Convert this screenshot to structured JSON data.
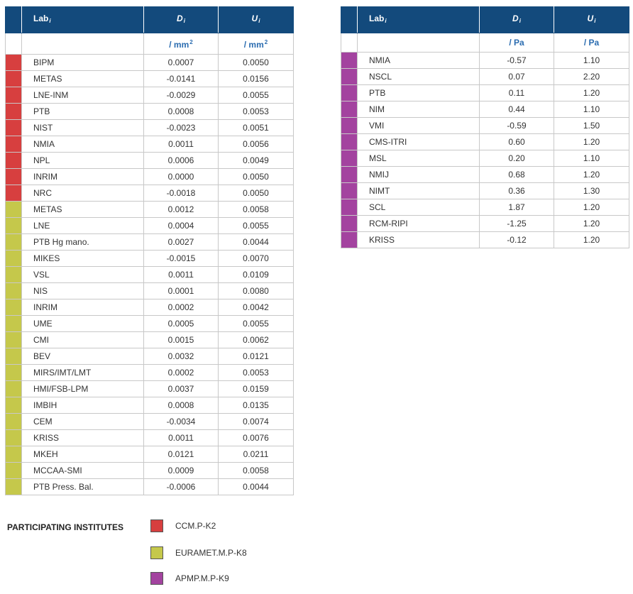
{
  "colors": {
    "header_bg": "#134a7c",
    "unit_text": "#2a6cb0",
    "red": "#d73f3f",
    "olive": "#c5c84b",
    "purple": "#a3439f"
  },
  "header": {
    "lab_label": "Lab",
    "lab_subscript": "i",
    "d_label": "D",
    "d_subscript": "i",
    "u_label": "U",
    "u_subscript": "i"
  },
  "left_table": {
    "unit_label": "/ mm",
    "unit_exponent": "2",
    "rows": [
      {
        "lab": "BIPM",
        "d": "0.0007",
        "u": "0.0050",
        "group": "red"
      },
      {
        "lab": "METAS",
        "d": "-0.0141",
        "u": "0.0156",
        "group": "red"
      },
      {
        "lab": "LNE-INM",
        "d": "-0.0029",
        "u": "0.0055",
        "group": "red"
      },
      {
        "lab": "PTB",
        "d": "0.0008",
        "u": "0.0053",
        "group": "red"
      },
      {
        "lab": "NIST",
        "d": "-0.0023",
        "u": "0.0051",
        "group": "red"
      },
      {
        "lab": "NMIA",
        "d": "0.0011",
        "u": "0.0056",
        "group": "red"
      },
      {
        "lab": "NPL",
        "d": "0.0006",
        "u": "0.0049",
        "group": "red"
      },
      {
        "lab": "INRIM",
        "d": "0.0000",
        "u": "0.0050",
        "group": "red"
      },
      {
        "lab": "NRC",
        "d": "-0.0018",
        "u": "0.0050",
        "group": "red"
      },
      {
        "lab": "METAS",
        "d": "0.0012",
        "u": "0.0058",
        "group": "olive"
      },
      {
        "lab": "LNE",
        "d": "0.0004",
        "u": "0.0055",
        "group": "olive"
      },
      {
        "lab": "PTB Hg mano.",
        "d": "0.0027",
        "u": "0.0044",
        "group": "olive"
      },
      {
        "lab": "MIKES",
        "d": "-0.0015",
        "u": "0.0070",
        "group": "olive"
      },
      {
        "lab": "VSL",
        "d": "0.0011",
        "u": "0.0109",
        "group": "olive"
      },
      {
        "lab": "NIS",
        "d": "0.0001",
        "u": "0.0080",
        "group": "olive"
      },
      {
        "lab": "INRIM",
        "d": "0.0002",
        "u": "0.0042",
        "group": "olive"
      },
      {
        "lab": "UME",
        "d": "0.0005",
        "u": "0.0055",
        "group": "olive"
      },
      {
        "lab": "CMI",
        "d": "0.0015",
        "u": "0.0062",
        "group": "olive"
      },
      {
        "lab": "BEV",
        "d": "0.0032",
        "u": "0.0121",
        "group": "olive"
      },
      {
        "lab": "MIRS/IMT/LMT",
        "d": "0.0002",
        "u": "0.0053",
        "group": "olive"
      },
      {
        "lab": "HMI/FSB-LPM",
        "d": "0.0037",
        "u": "0.0159",
        "group": "olive"
      },
      {
        "lab": "IMBIH",
        "d": "0.0008",
        "u": "0.0135",
        "group": "olive"
      },
      {
        "lab": "CEM",
        "d": "-0.0034",
        "u": "0.0074",
        "group": "olive"
      },
      {
        "lab": "KRISS",
        "d": "0.0011",
        "u": "0.0076",
        "group": "olive"
      },
      {
        "lab": "MKEH",
        "d": "0.0121",
        "u": "0.0211",
        "group": "olive"
      },
      {
        "lab": "MCCAA-SMI",
        "d": "0.0009",
        "u": "0.0058",
        "group": "olive"
      },
      {
        "lab": "PTB Press. Bal.",
        "d": "-0.0006",
        "u": "0.0044",
        "group": "olive"
      }
    ]
  },
  "right_table": {
    "unit_label": "/ Pa",
    "rows": [
      {
        "lab": "NMIA",
        "d": "-0.57",
        "u": "1.10",
        "group": "purple"
      },
      {
        "lab": "NSCL",
        "d": "0.07",
        "u": "2.20",
        "group": "purple"
      },
      {
        "lab": "PTB",
        "d": "0.11",
        "u": "1.20",
        "group": "purple"
      },
      {
        "lab": "NIM",
        "d": "0.44",
        "u": "1.10",
        "group": "purple"
      },
      {
        "lab": "VMI",
        "d": "-0.59",
        "u": "1.50",
        "group": "purple"
      },
      {
        "lab": "CMS-ITRI",
        "d": "0.60",
        "u": "1.20",
        "group": "purple"
      },
      {
        "lab": "MSL",
        "d": "0.20",
        "u": "1.10",
        "group": "purple"
      },
      {
        "lab": "NMIJ",
        "d": "0.68",
        "u": "1.20",
        "group": "purple"
      },
      {
        "lab": "NIMT",
        "d": "0.36",
        "u": "1.30",
        "group": "purple"
      },
      {
        "lab": "SCL",
        "d": "1.87",
        "u": "1.20",
        "group": "purple"
      },
      {
        "lab": "RCM-RIPI",
        "d": "-1.25",
        "u": "1.20",
        "group": "purple"
      },
      {
        "lab": "KRISS",
        "d": "-0.12",
        "u": "1.20",
        "group": "purple"
      }
    ]
  },
  "legend": {
    "title": "PARTICIPATING INSTITUTES",
    "items": [
      {
        "label": "CCM.P-K2",
        "group": "red"
      },
      {
        "label": "EURAMET.M.P-K8",
        "group": "olive"
      },
      {
        "label": "APMP.M.P-K9",
        "group": "purple"
      }
    ]
  }
}
